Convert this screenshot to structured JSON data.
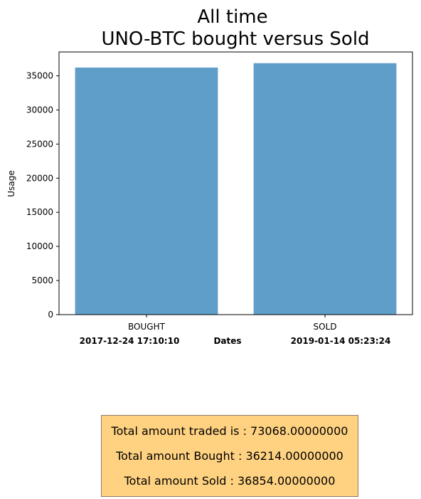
{
  "chart_data": {
    "type": "bar",
    "title": [
      "All time",
      "UNO-BTC bought versus Sold"
    ],
    "categories": [
      "BOUGHT",
      "SOLD"
    ],
    "values": [
      36214,
      36854
    ],
    "ylabel": "Usage",
    "xlabel": "Dates",
    "ylim": [
      0,
      38500
    ],
    "yticks": [
      0,
      5000,
      10000,
      15000,
      20000,
      25000,
      30000,
      35000
    ],
    "bar_color": "#5f9ec9",
    "grid": false,
    "date_start": "2017-12-24 17:10:10",
    "date_end": "2019-01-14 05:23:24"
  },
  "summary": {
    "line1": "Total amount traded is : 73068.00000000",
    "line2": "Total amount Bought : 36214.00000000",
    "line3": "Total amount Sold : 36854.00000000"
  }
}
